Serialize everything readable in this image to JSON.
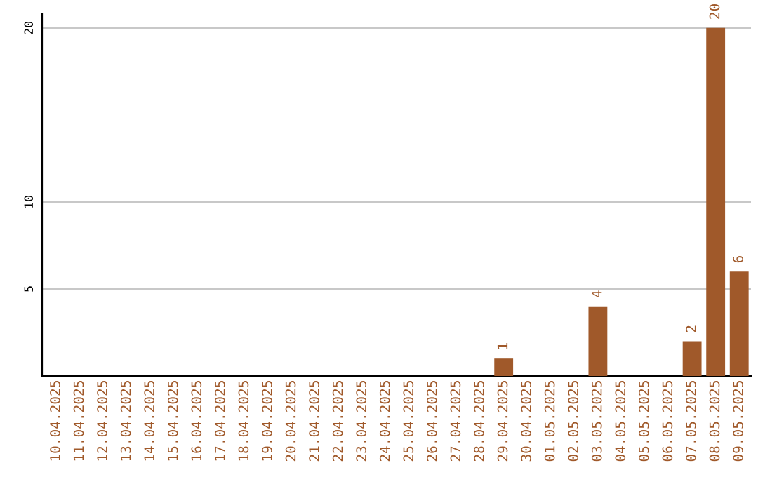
{
  "chart_data": {
    "type": "bar",
    "categories": [
      "10.04.2025",
      "11.04.2025",
      "12.04.2025",
      "13.04.2025",
      "14.04.2025",
      "15.04.2025",
      "16.04.2025",
      "17.04.2025",
      "18.04.2025",
      "19.04.2025",
      "20.04.2025",
      "21.04.2025",
      "22.04.2025",
      "23.04.2025",
      "24.04.2025",
      "25.04.2025",
      "26.04.2025",
      "27.04.2025",
      "28.04.2025",
      "29.04.2025",
      "30.04.2025",
      "01.05.2025",
      "02.05.2025",
      "03.05.2025",
      "04.05.2025",
      "05.05.2025",
      "06.05.2025",
      "07.05.2025",
      "08.05.2025",
      "09.05.2025"
    ],
    "values": [
      0,
      0,
      0,
      0,
      0,
      0,
      0,
      0,
      0,
      0,
      0,
      0,
      0,
      0,
      0,
      0,
      0,
      0,
      0,
      1,
      0,
      0,
      0,
      4,
      0,
      0,
      0,
      2,
      20,
      6
    ],
    "value_labels": [
      null,
      null,
      null,
      null,
      null,
      null,
      null,
      null,
      null,
      null,
      null,
      null,
      null,
      null,
      null,
      null,
      null,
      null,
      null,
      "1",
      null,
      null,
      null,
      "4",
      null,
      null,
      null,
      "2",
      "20",
      "6"
    ],
    "color": "#a0592a",
    "ylim": [
      0,
      20.8
    ],
    "yticks": [
      5,
      10,
      20
    ],
    "grid": "y",
    "legend": false
  }
}
